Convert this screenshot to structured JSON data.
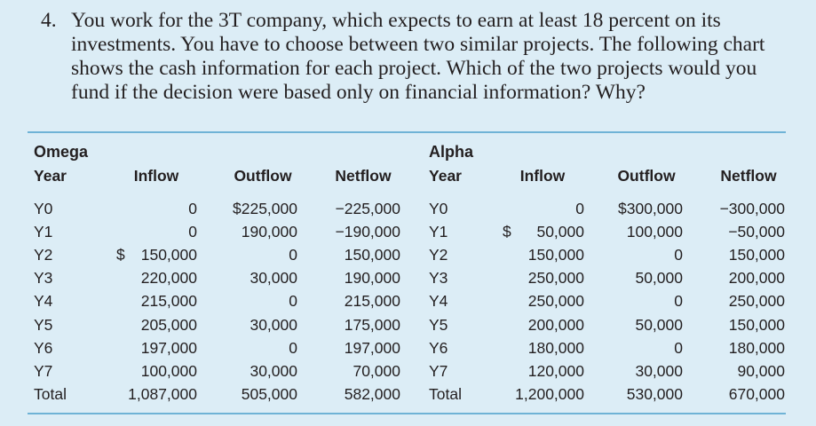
{
  "question": {
    "number": "4.",
    "text": "You work for the 3T company, which expects to earn at least 18 percent on its investments. You have to choose between two similar projects. The following chart shows the cash information for each project. Which of the two projects would you fund if the decision were based only on financial information? Why?"
  },
  "omega": {
    "title": "Omega",
    "headers": {
      "year": "Year",
      "inflow": "Inflow",
      "outflow": "Outflow",
      "netflow": "Netflow"
    },
    "rows": [
      {
        "year": "Y0",
        "inflow": "0",
        "outflow": "$225,000",
        "netflow": "−225,000"
      },
      {
        "year": "Y1",
        "inflow": "0",
        "outflow": "190,000",
        "netflow": "−190,000"
      },
      {
        "year": "Y2",
        "inflow": "150,000",
        "inflow_currency": "$",
        "outflow": "0",
        "netflow": "150,000"
      },
      {
        "year": "Y3",
        "inflow": "220,000",
        "outflow": "30,000",
        "netflow": "190,000"
      },
      {
        "year": "Y4",
        "inflow": "215,000",
        "outflow": "0",
        "netflow": "215,000"
      },
      {
        "year": "Y5",
        "inflow": "205,000",
        "outflow": "30,000",
        "netflow": "175,000"
      },
      {
        "year": "Y6",
        "inflow": "197,000",
        "outflow": "0",
        "netflow": "197,000"
      },
      {
        "year": "Y7",
        "inflow": "100,000",
        "outflow": "30,000",
        "netflow": "70,000"
      },
      {
        "year": "Total",
        "inflow": "1,087,000",
        "outflow": "505,000",
        "netflow": "582,000"
      }
    ]
  },
  "alpha": {
    "title": "Alpha",
    "headers": {
      "year": "Year",
      "inflow": "Inflow",
      "outflow": "Outflow",
      "netflow": "Netflow"
    },
    "rows": [
      {
        "year": "Y0",
        "inflow": "0",
        "outflow": "$300,000",
        "netflow": "−300,000"
      },
      {
        "year": "Y1",
        "inflow": "50,000",
        "inflow_currency": "$",
        "outflow": "100,000",
        "netflow": "−50,000"
      },
      {
        "year": "Y2",
        "inflow": "150,000",
        "outflow": "0",
        "netflow": "150,000"
      },
      {
        "year": "Y3",
        "inflow": "250,000",
        "outflow": "50,000",
        "netflow": "200,000"
      },
      {
        "year": "Y4",
        "inflow": "250,000",
        "outflow": "0",
        "netflow": "250,000"
      },
      {
        "year": "Y5",
        "inflow": "200,000",
        "outflow": "50,000",
        "netflow": "150,000"
      },
      {
        "year": "Y6",
        "inflow": "180,000",
        "outflow": "0",
        "netflow": "180,000"
      },
      {
        "year": "Y7",
        "inflow": "120,000",
        "outflow": "30,000",
        "netflow": "90,000"
      },
      {
        "year": "Total",
        "inflow": "1,200,000",
        "outflow": "530,000",
        "netflow": "670,000"
      }
    ]
  },
  "colors": {
    "background": "#dcedf6",
    "rule": "#6fb3d6",
    "text": "#231f20"
  }
}
